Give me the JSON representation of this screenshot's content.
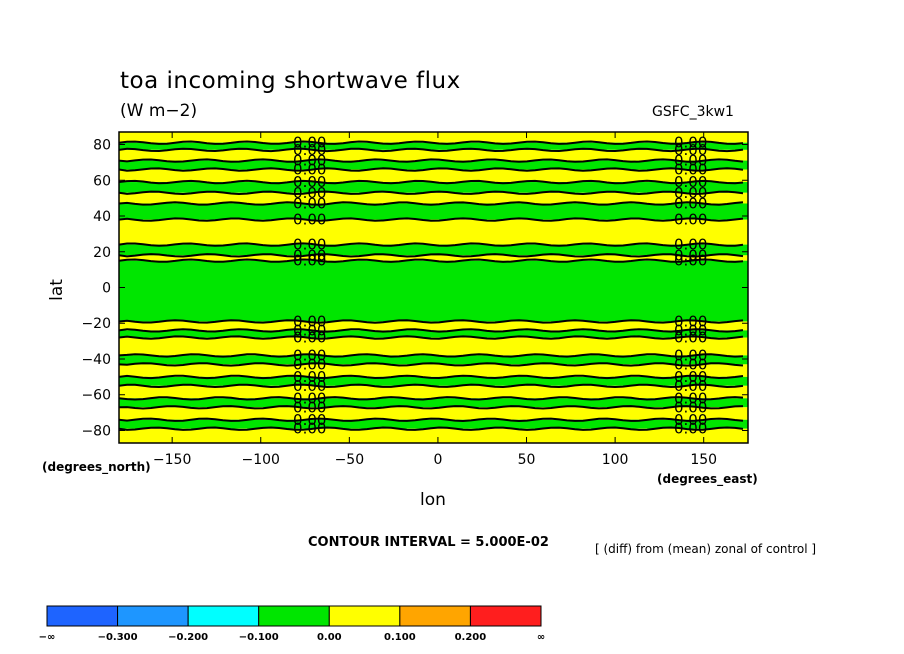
{
  "chart_data": {
    "type": "heatmap",
    "title": "toa incoming shortwave flux",
    "units": "(W m−2)",
    "model_tag": "GSFC_3kw1",
    "xlabel": "lon",
    "x_units": "(degrees_east)",
    "ylabel": "lat",
    "y_units": "(degrees_north)",
    "xlim": [
      -180,
      175
    ],
    "ylim": [
      -87,
      87
    ],
    "x_ticks": [
      -150,
      -100,
      -50,
      0,
      50,
      100,
      150
    ],
    "x_tick_labels": [
      "−150",
      "−100",
      "−50",
      "0",
      "50",
      "100",
      "150"
    ],
    "y_ticks": [
      80,
      60,
      40,
      20,
      0,
      -20,
      -40,
      -60,
      -80
    ],
    "y_tick_labels": [
      "80",
      "60",
      "40",
      "20",
      "0",
      "−20",
      "−40",
      "−60",
      "−80"
    ],
    "contour_interval_text": "CONTOUR INTERVAL = 5.000E-02",
    "note": "[ (diff) from (mean) zonal of control ]",
    "contour_label": "0.00",
    "contour_label_lons": [
      -75,
      140
    ],
    "zonal_bands": [
      {
        "lat_min": 81,
        "lat_max": 87,
        "bin": "0.00 to 0.100"
      },
      {
        "lat_min": 77,
        "lat_max": 81,
        "bin": "-0.100 to 0.00"
      },
      {
        "lat_min": 71,
        "lat_max": 77,
        "bin": "0.00 to 0.100"
      },
      {
        "lat_min": 66,
        "lat_max": 71,
        "bin": "-0.100 to 0.00"
      },
      {
        "lat_min": 59,
        "lat_max": 66,
        "bin": "0.00 to 0.100"
      },
      {
        "lat_min": 53,
        "lat_max": 59,
        "bin": "-0.100 to 0.00"
      },
      {
        "lat_min": 47,
        "lat_max": 53,
        "bin": "0.00 to 0.100"
      },
      {
        "lat_min": 38,
        "lat_max": 47,
        "bin": "-0.100 to 0.00"
      },
      {
        "lat_min": 24,
        "lat_max": 38,
        "bin": "0.00 to 0.100"
      },
      {
        "lat_min": 18,
        "lat_max": 24,
        "bin": "-0.100 to 0.00"
      },
      {
        "lat_min": 15,
        "lat_max": 18,
        "bin": "0.00 to 0.100"
      },
      {
        "lat_min": -19,
        "lat_max": 15,
        "bin": "-0.100 to 0.00"
      },
      {
        "lat_min": -24,
        "lat_max": -19,
        "bin": "0.00 to 0.100"
      },
      {
        "lat_min": -28,
        "lat_max": -24,
        "bin": "-0.100 to 0.00"
      },
      {
        "lat_min": -38,
        "lat_max": -28,
        "bin": "0.00 to 0.100"
      },
      {
        "lat_min": -43,
        "lat_max": -38,
        "bin": "-0.100 to 0.00"
      },
      {
        "lat_min": -50,
        "lat_max": -43,
        "bin": "0.00 to 0.100"
      },
      {
        "lat_min": -55,
        "lat_max": -50,
        "bin": "-0.100 to 0.00"
      },
      {
        "lat_min": -62,
        "lat_max": -55,
        "bin": "0.00 to 0.100"
      },
      {
        "lat_min": -67,
        "lat_max": -62,
        "bin": "-0.100 to 0.00"
      },
      {
        "lat_min": -74,
        "lat_max": -67,
        "bin": "0.00 to 0.100"
      },
      {
        "lat_min": -79,
        "lat_max": -74,
        "bin": "-0.100 to 0.00"
      },
      {
        "lat_min": -87,
        "lat_max": -79,
        "bin": "0.00 to 0.100"
      }
    ],
    "colorbar": {
      "labels": [
        "−∞",
        "−0.300",
        "−0.200",
        "−0.100",
        "0.00",
        "0.100",
        "0.200",
        "∞"
      ],
      "colors": [
        "#1e64ff",
        "#1e96ff",
        "#00ffff",
        "#00e600",
        "#ffff00",
        "#ffa500",
        "#ff1e1e"
      ]
    }
  }
}
